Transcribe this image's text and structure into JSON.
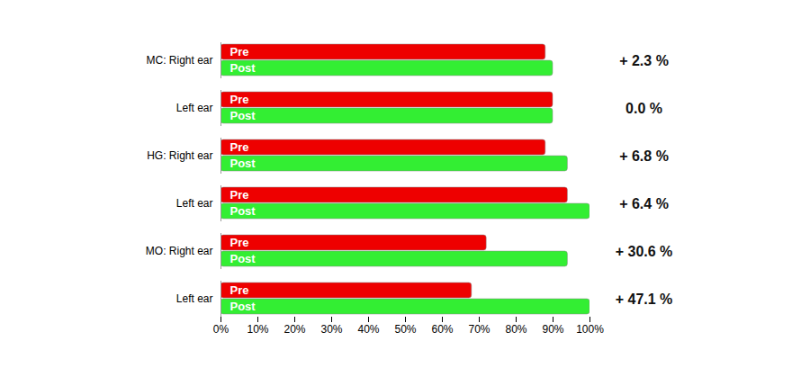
{
  "chart_data": {
    "type": "bar",
    "orientation": "horizontal",
    "categories": [
      "MC: Right ear",
      "Left ear",
      "HG: Right ear",
      "Left ear",
      "MO: Right ear",
      "Left ear"
    ],
    "series": [
      {
        "name": "Pre",
        "color": "#ee0000",
        "values": [
          88,
          90,
          88,
          94,
          72,
          68
        ]
      },
      {
        "name": "Post",
        "color": "#33ee33",
        "values": [
          90,
          90,
          94,
          100,
          94,
          100
        ]
      }
    ],
    "annotations": [
      "+ 2.3 %",
      "0.0 %",
      "+ 6.8 %",
      "+ 6.4 %",
      "+ 30.6 %",
      "+ 47.1 %"
    ],
    "xlim": [
      0,
      100
    ],
    "xticks": [
      {
        "value": 0,
        "label": "0%"
      },
      {
        "value": 10,
        "label": "10%"
      },
      {
        "value": 20,
        "label": "20%"
      },
      {
        "value": 30,
        "label": "30%"
      },
      {
        "value": 40,
        "label": "40%"
      },
      {
        "value": 50,
        "label": "50%"
      },
      {
        "value": 60,
        "label": "60%"
      },
      {
        "value": 70,
        "label": "70%"
      },
      {
        "value": 80,
        "label": "80%"
      },
      {
        "value": 90,
        "label": "90%"
      },
      {
        "value": 100,
        "label": "100%"
      }
    ],
    "grid": false
  }
}
